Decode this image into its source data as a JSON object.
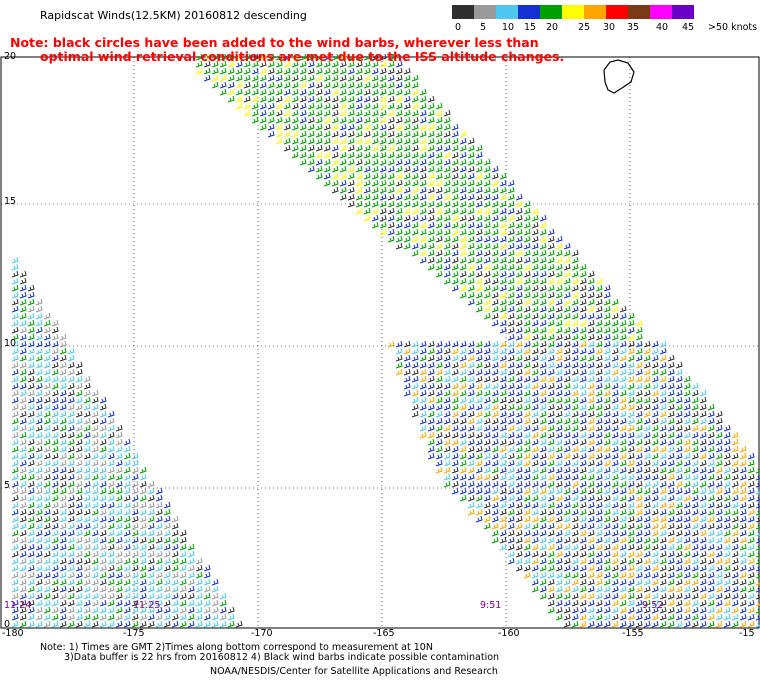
{
  "title": "Rapidscat Winds(12.5KM) 20160812 descending",
  "note": {
    "line1": "Note: black circles have been added to the wind barbs, wherever less than",
    "line2": "optimal wind retrieval conditions are met due to the ISS altitude changes."
  },
  "legend": {
    "unit_label": ">50 knots",
    "ticks": [
      "0",
      "5",
      "10",
      "15",
      "20",
      "25",
      "30",
      "35",
      "40",
      "45"
    ],
    "colors": [
      "#303030",
      "#9a9a9a",
      "#4ec8f0",
      "#1530d0",
      "#00a000",
      "#ffff00",
      "#ffa500",
      "#ff0000",
      "#7a3a18",
      "#ff00ff",
      "#6a00c8"
    ]
  },
  "axes": {
    "lat_ticks": [
      "20",
      "15",
      "10",
      "5",
      "0"
    ],
    "lon_ticks": [
      "-180",
      "-175",
      "-170",
      "-165",
      "-160",
      "-155",
      "-15"
    ]
  },
  "time_labels": [
    "11:24",
    "11:25",
    "9:51",
    "9:52"
  ],
  "footer": {
    "line1": "Note: 1) Times are GMT 2)Times along bottom correspond to measurement at 10N",
    "line2": "3)Data buffer is 22 hrs from 20160812 4) Black wind barbs indicate possible contamination",
    "line3": "NOAA/NESDIS/Center for Satellite Applications and Research"
  }
}
